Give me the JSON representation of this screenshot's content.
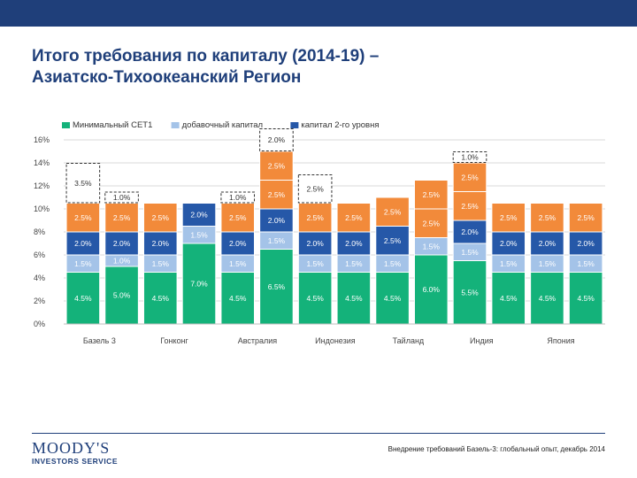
{
  "header": {
    "title_line1": "Итого требования по капиталу (2014-19) –",
    "title_line2": "Азиатско-Тихоокеанский Регион"
  },
  "footer": {
    "logo_name": "MOODY'S",
    "logo_sub": "INVESTORS SERVICE",
    "note": "Внедрение требований Базель-3: глобальный опыт, декабрь 2014"
  },
  "colors": {
    "brand": "#1f3f7a",
    "cet1": "#14b27a",
    "additional": "#a4c3e8",
    "tier2": "#2658a8",
    "buffer": "#f28a3a",
    "extra": "#ffffff"
  },
  "chart_data": {
    "type": "bar",
    "stacked": true,
    "categories": [
      "Базель 3",
      "",
      "Гонконг",
      "",
      "Австралия",
      "",
      "Индонезия",
      "",
      "Тайланд",
      "",
      "Индия",
      "",
      "Япония",
      ""
    ],
    "ylim": [
      0,
      16
    ],
    "yticks": [
      "0%",
      "2%",
      "4%",
      "6%",
      "8%",
      "10%",
      "12%",
      "14%",
      "16%"
    ],
    "grid": true,
    "legend_position": "top",
    "series": [
      {
        "name": "Минимальный CET1",
        "color": "#14b27a",
        "values": [
          4.5,
          5.0,
          4.5,
          7.0,
          4.5,
          6.5,
          4.5,
          4.5,
          4.5,
          6.0,
          5.5,
          4.5,
          4.5,
          4.5
        ],
        "labels": [
          "4.5%",
          "5.0%",
          "4.5%",
          "7.0%",
          "4.5%",
          "6.5%",
          "4.5%",
          "4.5%",
          "4.5%",
          "6.0%",
          "5.5%",
          "4.5%",
          "4.5%",
          "4.5%"
        ]
      },
      {
        "name": "добавочный капитал",
        "color": "#a4c3e8",
        "values": [
          1.5,
          1.0,
          1.5,
          1.5,
          1.5,
          1.5,
          1.5,
          1.5,
          1.5,
          1.5,
          1.5,
          1.5,
          1.5,
          1.5
        ],
        "labels": [
          "1.5%",
          "1.0%",
          "1.5%",
          "1.5%",
          "1.5%",
          "1.5%",
          "1.5%",
          "1.5%",
          "1.5%",
          "1.5%",
          "1.5%",
          "1.5%",
          "1.5%",
          "1.5%"
        ]
      },
      {
        "name": "капитал 2-го уровня",
        "color": "#2658a8",
        "values": [
          2.0,
          2.0,
          2.0,
          2.0,
          2.0,
          2.0,
          2.0,
          2.0,
          2.5,
          0,
          2.0,
          2.0,
          2.0,
          2.0
        ],
        "labels": [
          "2.0%",
          "2.0%",
          "2.0%",
          "2.0%",
          "2.0%",
          "2.0%",
          "2.0%",
          "2.0%",
          "2.5%",
          "",
          "2.0%",
          "2.0%",
          "2.0%",
          "2.0%"
        ]
      },
      {
        "name": "",
        "color": "#f28a3a",
        "values": [
          2.5,
          2.5,
          2.5,
          0,
          2.5,
          2.5,
          2.5,
          2.5,
          2.5,
          2.5,
          2.5,
          2.5,
          2.5,
          2.5
        ],
        "labels": [
          "2.5%",
          "2.5%",
          "2.5%",
          "",
          "2.5%",
          "2.5%",
          "2.5%",
          "2.5%",
          "2.5%",
          "2.5%",
          "2.5%",
          "2.5%",
          "2.5%",
          "2.5%"
        ]
      },
      {
        "name": "",
        "color": "#f28a3a",
        "values": [
          0,
          0,
          0,
          0,
          0,
          2.5,
          0,
          0,
          0,
          2.5,
          0,
          0,
          0,
          0
        ],
        "labels": [
          "",
          "",
          "",
          "",
          "",
          "2.5%",
          "",
          "",
          "",
          "2.5%",
          "",
          "",
          "",
          ""
        ]
      },
      {
        "name": "",
        "color": "#f28a3a",
        "values": [
          0,
          0,
          0,
          0,
          0,
          0,
          0,
          0,
          0,
          0,
          2.5,
          0,
          0,
          0
        ],
        "labels": [
          "",
          "",
          "",
          "",
          "",
          "",
          "",
          "",
          "",
          "",
          "2.5%",
          "",
          "",
          ""
        ]
      },
      {
        "name": "",
        "color": "#ffffff",
        "dashed": true,
        "values": [
          3.5,
          1.0,
          0,
          0,
          1.0,
          2.0,
          2.5,
          0,
          0,
          0,
          1.0,
          0,
          0,
          0
        ],
        "labels": [
          "3.5%",
          "1.0%",
          "",
          "",
          "1.0%",
          "2.0%",
          "2.5%",
          "",
          "",
          "",
          "1.0%",
          "",
          "",
          ""
        ]
      }
    ]
  }
}
